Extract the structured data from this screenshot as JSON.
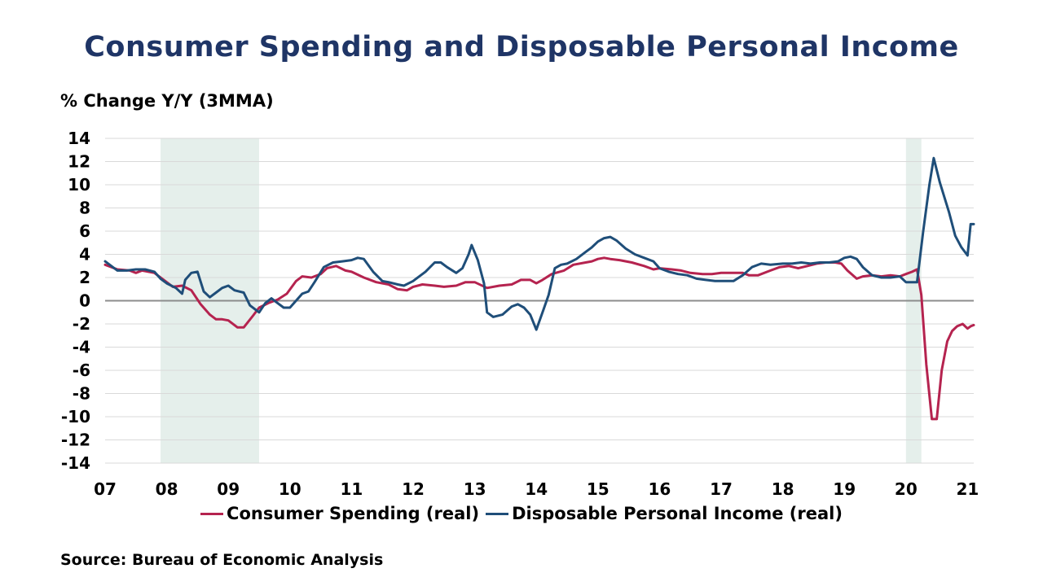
{
  "chart_data": {
    "type": "line",
    "title": "Consumer Spending and Disposable Personal Income",
    "ylabel": "%  Change Y/Y (3MMA)",
    "xlabel": "",
    "source": "Source: Bureau of Economic Analysis",
    "ylim": [
      -14,
      14
    ],
    "yticks": [
      14,
      12,
      10,
      8,
      6,
      4,
      2,
      0,
      -2,
      -4,
      -6,
      -8,
      -10,
      -12,
      -14
    ],
    "xlim": [
      2007.0,
      2021.1
    ],
    "xticks": [
      {
        "value": 2007,
        "label": "07"
      },
      {
        "value": 2008,
        "label": "08"
      },
      {
        "value": 2009,
        "label": "09"
      },
      {
        "value": 2010,
        "label": "10"
      },
      {
        "value": 2011,
        "label": "11"
      },
      {
        "value": 2012,
        "label": "12"
      },
      {
        "value": 2013,
        "label": "13"
      },
      {
        "value": 2014,
        "label": "14"
      },
      {
        "value": 2015,
        "label": "15"
      },
      {
        "value": 2016,
        "label": "16"
      },
      {
        "value": 2017,
        "label": "17"
      },
      {
        "value": 2018,
        "label": "18"
      },
      {
        "value": 2019,
        "label": "19"
      },
      {
        "value": 2020,
        "label": "20"
      },
      {
        "value": 2021,
        "label": "21"
      }
    ],
    "grid": true,
    "recession_shading": [
      [
        2007.9,
        2009.5
      ],
      [
        2020.0,
        2020.25
      ]
    ],
    "legend_position": "bottom",
    "series": [
      {
        "name": "Consumer Spending (real)",
        "color": "#b5234f",
        "points": [
          [
            2007.0,
            3.1
          ],
          [
            2007.2,
            2.7
          ],
          [
            2007.4,
            2.6
          ],
          [
            2007.5,
            2.4
          ],
          [
            2007.6,
            2.6
          ],
          [
            2007.8,
            2.4
          ],
          [
            2007.9,
            2.0
          ],
          [
            2008.0,
            1.6
          ],
          [
            2008.1,
            1.2
          ],
          [
            2008.25,
            1.3
          ],
          [
            2008.4,
            0.9
          ],
          [
            2008.55,
            -0.3
          ],
          [
            2008.7,
            -1.2
          ],
          [
            2008.8,
            -1.6
          ],
          [
            2008.9,
            -1.6
          ],
          [
            2009.0,
            -1.7
          ],
          [
            2009.15,
            -2.3
          ],
          [
            2009.25,
            -2.3
          ],
          [
            2009.4,
            -1.3
          ],
          [
            2009.5,
            -0.6
          ],
          [
            2009.65,
            -0.2
          ],
          [
            2009.8,
            0.1
          ],
          [
            2009.95,
            0.6
          ],
          [
            2010.1,
            1.7
          ],
          [
            2010.2,
            2.1
          ],
          [
            2010.35,
            2.0
          ],
          [
            2010.5,
            2.3
          ],
          [
            2010.6,
            2.8
          ],
          [
            2010.75,
            3.0
          ],
          [
            2010.9,
            2.6
          ],
          [
            2011.0,
            2.5
          ],
          [
            2011.2,
            2.0
          ],
          [
            2011.4,
            1.6
          ],
          [
            2011.6,
            1.4
          ],
          [
            2011.75,
            1.0
          ],
          [
            2011.9,
            0.9
          ],
          [
            2012.0,
            1.2
          ],
          [
            2012.15,
            1.4
          ],
          [
            2012.35,
            1.3
          ],
          [
            2012.5,
            1.2
          ],
          [
            2012.7,
            1.3
          ],
          [
            2012.85,
            1.6
          ],
          [
            2013.0,
            1.6
          ],
          [
            2013.2,
            1.1
          ],
          [
            2013.4,
            1.3
          ],
          [
            2013.6,
            1.4
          ],
          [
            2013.75,
            1.8
          ],
          [
            2013.9,
            1.8
          ],
          [
            2014.0,
            1.5
          ],
          [
            2014.1,
            1.8
          ],
          [
            2014.25,
            2.3
          ],
          [
            2014.45,
            2.6
          ],
          [
            2014.6,
            3.1
          ],
          [
            2014.8,
            3.3
          ],
          [
            2014.9,
            3.4
          ],
          [
            2015.0,
            3.6
          ],
          [
            2015.1,
            3.7
          ],
          [
            2015.2,
            3.6
          ],
          [
            2015.35,
            3.5
          ],
          [
            2015.55,
            3.3
          ],
          [
            2015.75,
            3.0
          ],
          [
            2015.9,
            2.7
          ],
          [
            2016.0,
            2.8
          ],
          [
            2016.2,
            2.7
          ],
          [
            2016.35,
            2.6
          ],
          [
            2016.5,
            2.4
          ],
          [
            2016.7,
            2.3
          ],
          [
            2016.85,
            2.3
          ],
          [
            2017.0,
            2.4
          ],
          [
            2017.2,
            2.4
          ],
          [
            2017.35,
            2.4
          ],
          [
            2017.45,
            2.2
          ],
          [
            2017.6,
            2.2
          ],
          [
            2017.8,
            2.6
          ],
          [
            2017.95,
            2.9
          ],
          [
            2018.1,
            3.0
          ],
          [
            2018.25,
            2.8
          ],
          [
            2018.4,
            3.0
          ],
          [
            2018.55,
            3.2
          ],
          [
            2018.7,
            3.3
          ],
          [
            2018.85,
            3.3
          ],
          [
            2018.95,
            3.2
          ],
          [
            2019.05,
            2.6
          ],
          [
            2019.2,
            1.9
          ],
          [
            2019.3,
            2.1
          ],
          [
            2019.45,
            2.2
          ],
          [
            2019.6,
            2.1
          ],
          [
            2019.75,
            2.2
          ],
          [
            2019.9,
            2.1
          ],
          [
            2020.0,
            2.3
          ],
          [
            2020.1,
            2.5
          ],
          [
            2020.18,
            2.7
          ],
          [
            2020.25,
            0.5
          ],
          [
            2020.33,
            -5.5
          ],
          [
            2020.42,
            -10.2
          ],
          [
            2020.5,
            -10.2
          ],
          [
            2020.58,
            -6.0
          ],
          [
            2020.67,
            -3.5
          ],
          [
            2020.75,
            -2.6
          ],
          [
            2020.83,
            -2.2
          ],
          [
            2020.92,
            -2.0
          ],
          [
            2021.0,
            -2.4
          ],
          [
            2021.05,
            -2.2
          ],
          [
            2021.1,
            -2.1
          ]
        ]
      },
      {
        "name": "Disposable Personal Income (real)",
        "color": "#1f4e79",
        "points": [
          [
            2007.0,
            3.4
          ],
          [
            2007.1,
            3.0
          ],
          [
            2007.2,
            2.6
          ],
          [
            2007.35,
            2.6
          ],
          [
            2007.5,
            2.7
          ],
          [
            2007.65,
            2.7
          ],
          [
            2007.8,
            2.5
          ],
          [
            2007.9,
            1.9
          ],
          [
            2008.0,
            1.5
          ],
          [
            2008.15,
            1.1
          ],
          [
            2008.25,
            0.6
          ],
          [
            2008.3,
            1.8
          ],
          [
            2008.4,
            2.4
          ],
          [
            2008.5,
            2.5
          ],
          [
            2008.6,
            0.8
          ],
          [
            2008.7,
            0.3
          ],
          [
            2008.8,
            0.7
          ],
          [
            2008.9,
            1.1
          ],
          [
            2009.0,
            1.3
          ],
          [
            2009.1,
            0.9
          ],
          [
            2009.25,
            0.7
          ],
          [
            2009.35,
            -0.4
          ],
          [
            2009.5,
            -1.0
          ],
          [
            2009.6,
            -0.2
          ],
          [
            2009.7,
            0.2
          ],
          [
            2009.8,
            -0.2
          ],
          [
            2009.9,
            -0.6
          ],
          [
            2010.0,
            -0.6
          ],
          [
            2010.2,
            0.6
          ],
          [
            2010.3,
            0.8
          ],
          [
            2010.4,
            1.6
          ],
          [
            2010.55,
            2.9
          ],
          [
            2010.7,
            3.3
          ],
          [
            2010.85,
            3.4
          ],
          [
            2011.0,
            3.5
          ],
          [
            2011.1,
            3.7
          ],
          [
            2011.2,
            3.6
          ],
          [
            2011.35,
            2.5
          ],
          [
            2011.5,
            1.7
          ],
          [
            2011.6,
            1.6
          ],
          [
            2011.75,
            1.4
          ],
          [
            2011.85,
            1.3
          ],
          [
            2012.0,
            1.7
          ],
          [
            2012.2,
            2.5
          ],
          [
            2012.35,
            3.3
          ],
          [
            2012.45,
            3.3
          ],
          [
            2012.55,
            2.9
          ],
          [
            2012.7,
            2.4
          ],
          [
            2012.8,
            2.8
          ],
          [
            2012.9,
            4.0
          ],
          [
            2012.95,
            4.8
          ],
          [
            2013.05,
            3.5
          ],
          [
            2013.15,
            1.5
          ],
          [
            2013.2,
            -1.0
          ],
          [
            2013.3,
            -1.4
          ],
          [
            2013.45,
            -1.2
          ],
          [
            2013.6,
            -0.5
          ],
          [
            2013.7,
            -0.3
          ],
          [
            2013.8,
            -0.6
          ],
          [
            2013.9,
            -1.2
          ],
          [
            2014.0,
            -2.5
          ],
          [
            2014.1,
            -1.0
          ],
          [
            2014.2,
            0.5
          ],
          [
            2014.3,
            2.8
          ],
          [
            2014.4,
            3.1
          ],
          [
            2014.5,
            3.2
          ],
          [
            2014.65,
            3.6
          ],
          [
            2014.8,
            4.2
          ],
          [
            2014.9,
            4.6
          ],
          [
            2015.0,
            5.1
          ],
          [
            2015.1,
            5.4
          ],
          [
            2015.2,
            5.5
          ],
          [
            2015.3,
            5.2
          ],
          [
            2015.45,
            4.5
          ],
          [
            2015.6,
            4.0
          ],
          [
            2015.75,
            3.7
          ],
          [
            2015.9,
            3.4
          ],
          [
            2016.0,
            2.8
          ],
          [
            2016.15,
            2.5
          ],
          [
            2016.3,
            2.3
          ],
          [
            2016.45,
            2.2
          ],
          [
            2016.6,
            1.9
          ],
          [
            2016.75,
            1.8
          ],
          [
            2016.9,
            1.7
          ],
          [
            2017.05,
            1.7
          ],
          [
            2017.2,
            1.7
          ],
          [
            2017.35,
            2.2
          ],
          [
            2017.5,
            2.9
          ],
          [
            2017.65,
            3.2
          ],
          [
            2017.8,
            3.1
          ],
          [
            2018.0,
            3.2
          ],
          [
            2018.15,
            3.2
          ],
          [
            2018.3,
            3.3
          ],
          [
            2018.45,
            3.2
          ],
          [
            2018.6,
            3.3
          ],
          [
            2018.75,
            3.3
          ],
          [
            2018.9,
            3.4
          ],
          [
            2019.0,
            3.7
          ],
          [
            2019.1,
            3.8
          ],
          [
            2019.2,
            3.6
          ],
          [
            2019.3,
            2.9
          ],
          [
            2019.45,
            2.2
          ],
          [
            2019.6,
            2.0
          ],
          [
            2019.75,
            2.0
          ],
          [
            2019.9,
            2.1
          ],
          [
            2020.0,
            1.6
          ],
          [
            2020.1,
            1.6
          ],
          [
            2020.18,
            1.6
          ],
          [
            2020.28,
            6.0
          ],
          [
            2020.38,
            10.0
          ],
          [
            2020.45,
            12.3
          ],
          [
            2020.55,
            10.2
          ],
          [
            2020.7,
            7.6
          ],
          [
            2020.8,
            5.6
          ],
          [
            2020.9,
            4.6
          ],
          [
            2021.0,
            3.9
          ],
          [
            2021.05,
            6.6
          ],
          [
            2021.1,
            6.6
          ]
        ]
      }
    ]
  }
}
